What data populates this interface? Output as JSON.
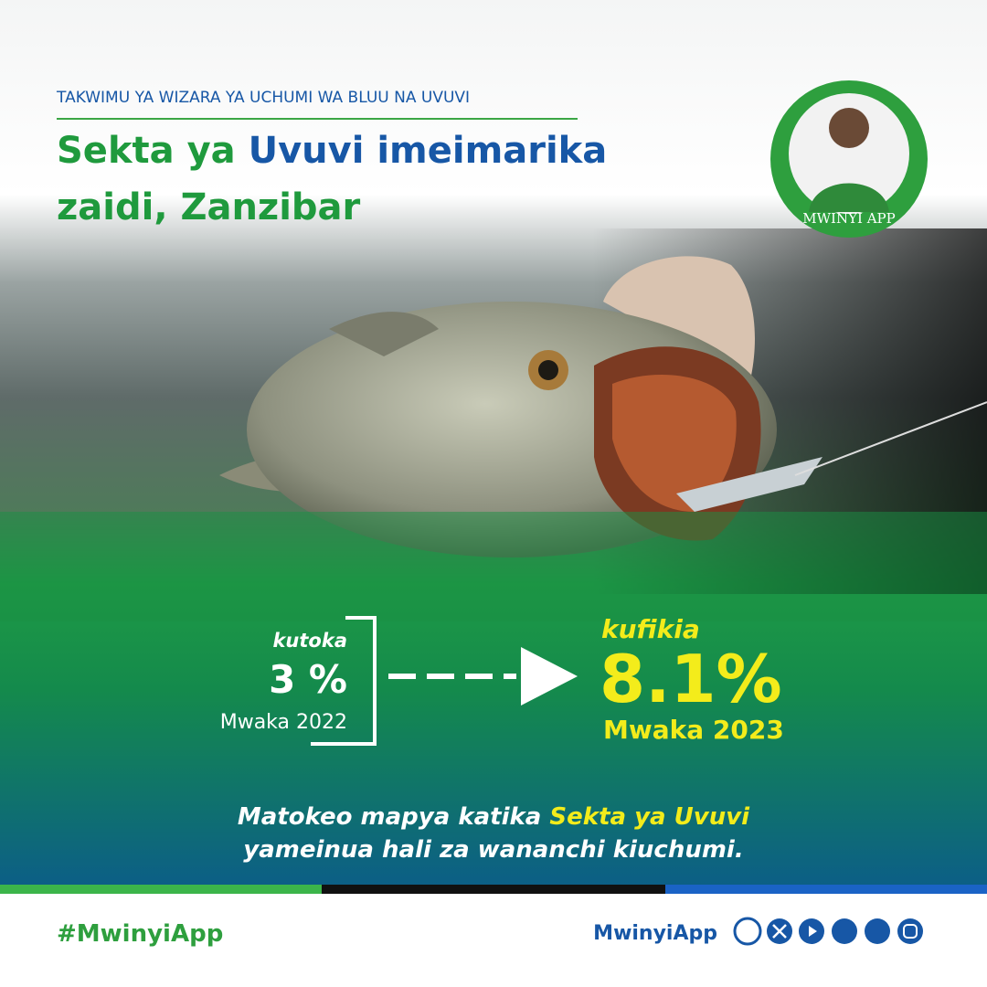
{
  "header": {
    "kicker": "TAKWIMU YA WIZARA YA UCHUMI WA BLUU NA UVUVI",
    "title": {
      "line1_a": "Sekta ya",
      "line1_b": "Uvuvi imeimarika",
      "line2": "zaidi, Zanzibar"
    }
  },
  "logo": {
    "label": "MWINYI APP"
  },
  "stat": {
    "from": {
      "label": "kutoka",
      "value": "3 %",
      "year": "Mwaka 2022"
    },
    "to": {
      "label": "kufikia",
      "value": "8.1%",
      "year": "Mwaka 2023"
    }
  },
  "message": {
    "line1_a": "Matokeo  mapya  katika",
    "line1_b": "Sekta ya Uvuvi",
    "line2": "yameinua hali za wananchi  kiuchumi."
  },
  "footer": {
    "hashtag": "#MwinyiApp",
    "handle": "MwinyiApp"
  }
}
